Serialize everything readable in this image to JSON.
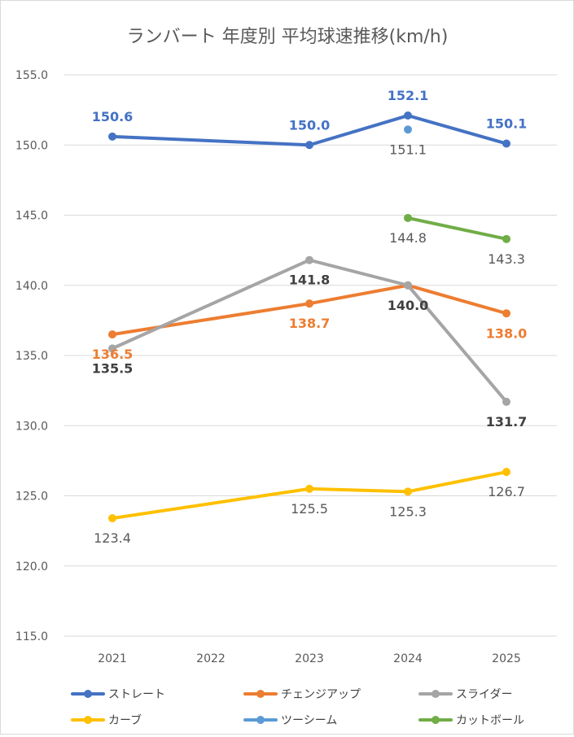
{
  "chart_data": {
    "type": "line",
    "title": "ランバート 年度別 平均球速推移(km/h)",
    "xlabel": "",
    "ylabel": "",
    "categories": [
      "2021",
      "2022",
      "2023",
      "2024",
      "2025"
    ],
    "ylim": [
      115,
      155
    ],
    "yticks": [
      "155.0",
      "150.0",
      "145.0",
      "140.0",
      "135.0",
      "130.0",
      "125.0",
      "120.0",
      "115.0"
    ],
    "grid": true,
    "legend_position": "bottom",
    "series": [
      {
        "name": "ストレート",
        "color": "#4472c4",
        "label_color": "#4472c4",
        "label_bold": true,
        "points": [
          {
            "x": "2021",
            "y": 150.6,
            "label": "150.6",
            "pos": "above"
          },
          {
            "x": "2023",
            "y": 150.0,
            "label": "150.0",
            "pos": "above"
          },
          {
            "x": "2024",
            "y": 152.1,
            "label": "152.1",
            "pos": "above"
          },
          {
            "x": "2025",
            "y": 150.1,
            "label": "150.1",
            "pos": "above"
          }
        ]
      },
      {
        "name": "チェンジアップ",
        "color": "#ed7d31",
        "label_color": "#ed7d31",
        "label_bold": true,
        "points": [
          {
            "x": "2021",
            "y": 136.5,
            "label": "136.5",
            "pos": "below"
          },
          {
            "x": "2023",
            "y": 138.7,
            "label": "138.7",
            "pos": "below"
          },
          {
            "x": "2024",
            "y": 140.0,
            "label": "140.0",
            "pos": "below",
            "label_color": "#404040"
          },
          {
            "x": "2025",
            "y": 138.0,
            "label": "138.0",
            "pos": "below"
          }
        ]
      },
      {
        "name": "スライダー",
        "color": "#a5a5a5",
        "label_color": "#404040",
        "label_bold": true,
        "points": [
          {
            "x": "2021",
            "y": 135.5,
            "label": "135.5",
            "pos": "below"
          },
          {
            "x": "2023",
            "y": 141.8,
            "label": "141.8",
            "pos": "below"
          },
          {
            "x": "2024",
            "y": 140.0,
            "label": "",
            "pos": "below"
          },
          {
            "x": "2025",
            "y": 131.7,
            "label": "131.7",
            "pos": "below"
          }
        ]
      },
      {
        "name": "カーブ",
        "color": "#ffc000",
        "label_color": "#595959",
        "label_bold": false,
        "points": [
          {
            "x": "2021",
            "y": 123.4,
            "label": "123.4",
            "pos": "below"
          },
          {
            "x": "2023",
            "y": 125.5,
            "label": "125.5",
            "pos": "below"
          },
          {
            "x": "2024",
            "y": 125.3,
            "label": "125.3",
            "pos": "below"
          },
          {
            "x": "2025",
            "y": 126.7,
            "label": "126.7",
            "pos": "below"
          }
        ]
      },
      {
        "name": "ツーシーム",
        "color": "#5b9bd5",
        "label_color": "#595959",
        "label_bold": false,
        "points": [
          {
            "x": "2024",
            "y": 151.1,
            "label": "151.1",
            "pos": "below"
          }
        ]
      },
      {
        "name": "カットボール",
        "color": "#70ad47",
        "label_color": "#595959",
        "label_bold": false,
        "points": [
          {
            "x": "2024",
            "y": 144.8,
            "label": "144.8",
            "pos": "below"
          },
          {
            "x": "2025",
            "y": 143.3,
            "label": "143.3",
            "pos": "below"
          }
        ]
      }
    ]
  }
}
